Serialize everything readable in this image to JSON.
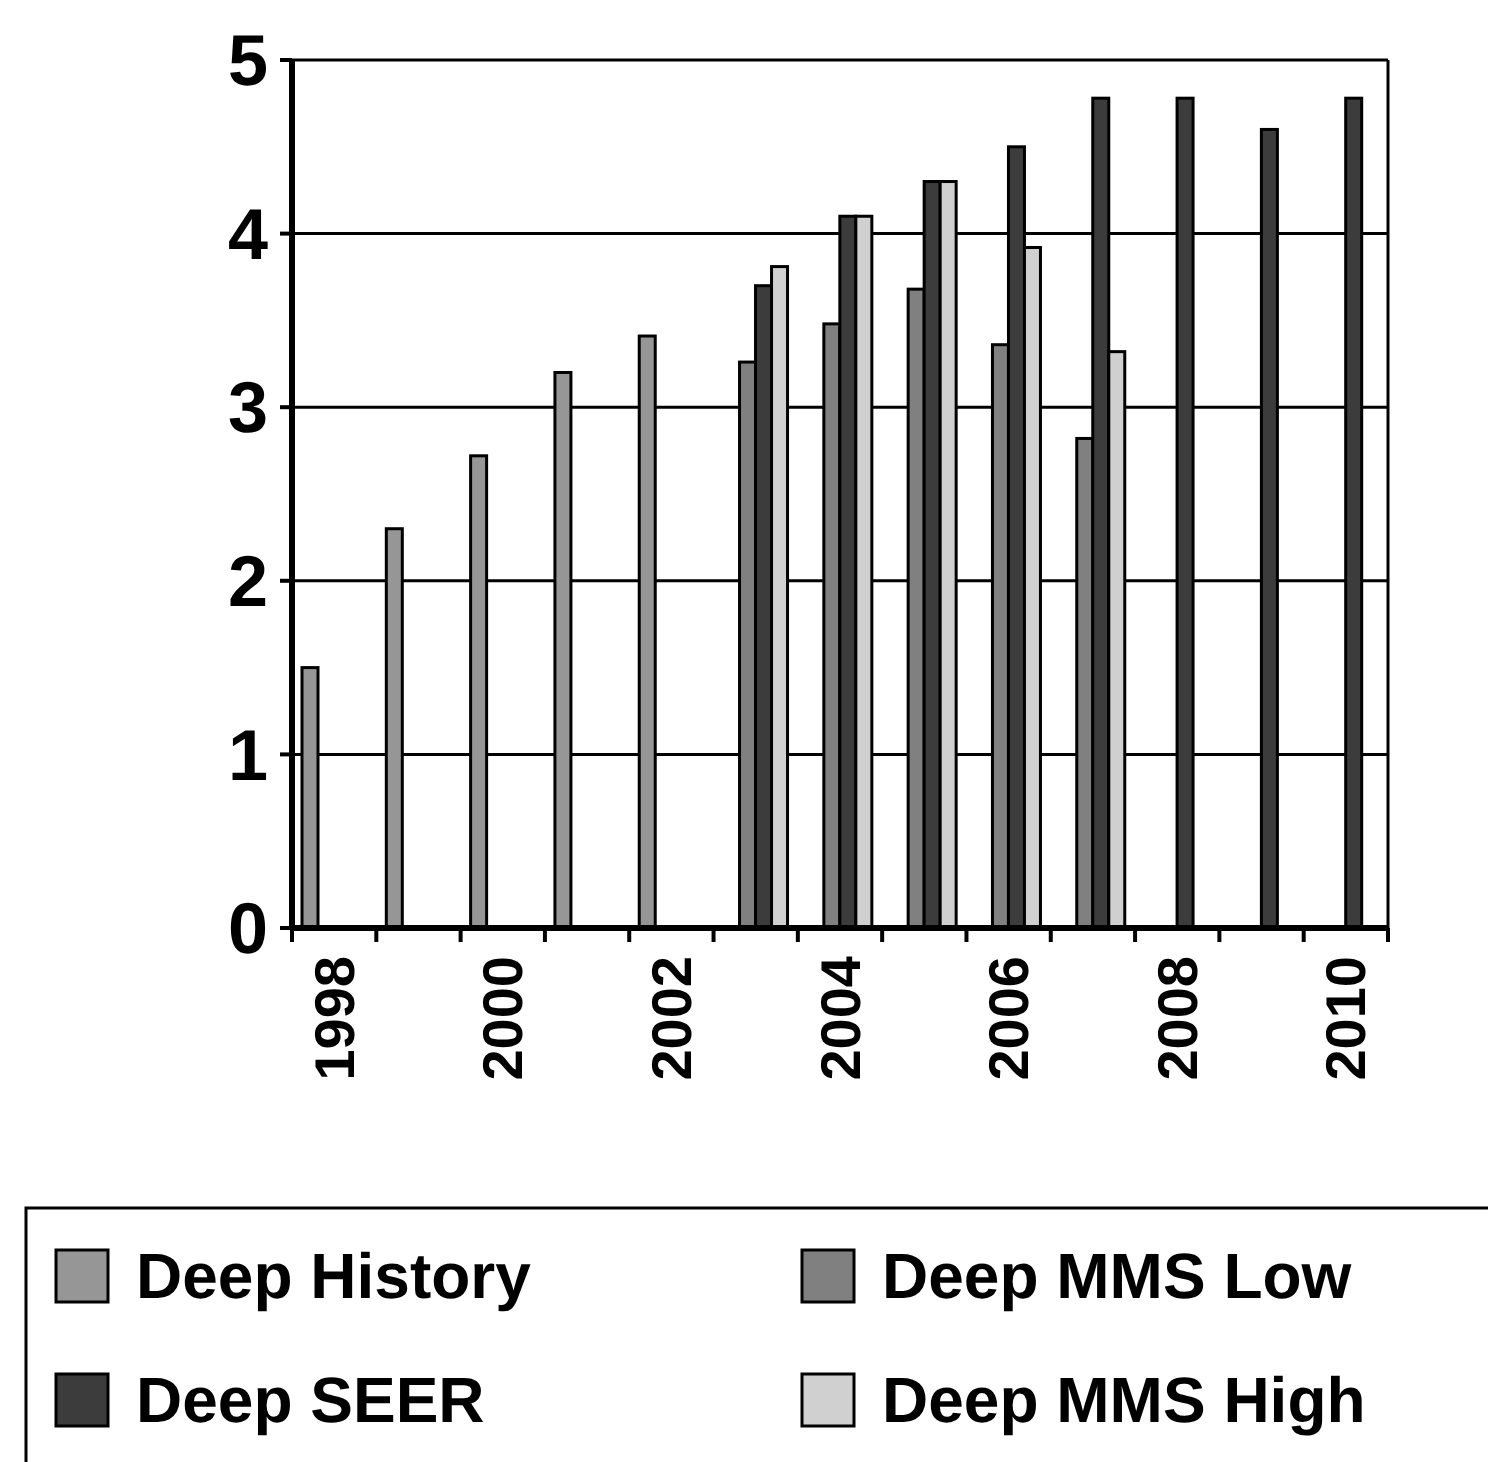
{
  "chart_data": {
    "type": "bar",
    "categories": [
      "1998",
      null,
      "2000",
      null,
      "2002",
      null,
      "2004",
      null,
      "2006",
      null,
      "2008",
      null,
      "2010"
    ],
    "series": [
      {
        "name": "Deep History",
        "color": "#969696",
        "values": [
          1.5,
          2.3,
          2.72,
          3.2,
          3.41,
          null,
          null,
          null,
          null,
          null,
          null,
          null,
          null
        ]
      },
      {
        "name": "Deep MMS Low",
        "color": "#808080",
        "values": [
          null,
          null,
          null,
          null,
          null,
          3.26,
          3.48,
          3.68,
          3.36,
          2.82,
          null,
          null,
          null
        ]
      },
      {
        "name": "Deep SEER",
        "color": "#3c3c3c",
        "values": [
          null,
          null,
          null,
          null,
          null,
          3.7,
          4.1,
          4.3,
          4.5,
          4.78,
          4.78,
          4.6,
          4.78
        ]
      },
      {
        "name": "Deep MMS High",
        "color": "#d0d0d0",
        "values": [
          null,
          null,
          null,
          null,
          null,
          3.81,
          4.1,
          4.3,
          3.92,
          3.32,
          null,
          null,
          null
        ]
      }
    ],
    "ylim": [
      0,
      5
    ],
    "yticks": [
      0,
      1,
      2,
      3,
      4,
      5
    ],
    "grid": "y",
    "legend": "bottom"
  }
}
